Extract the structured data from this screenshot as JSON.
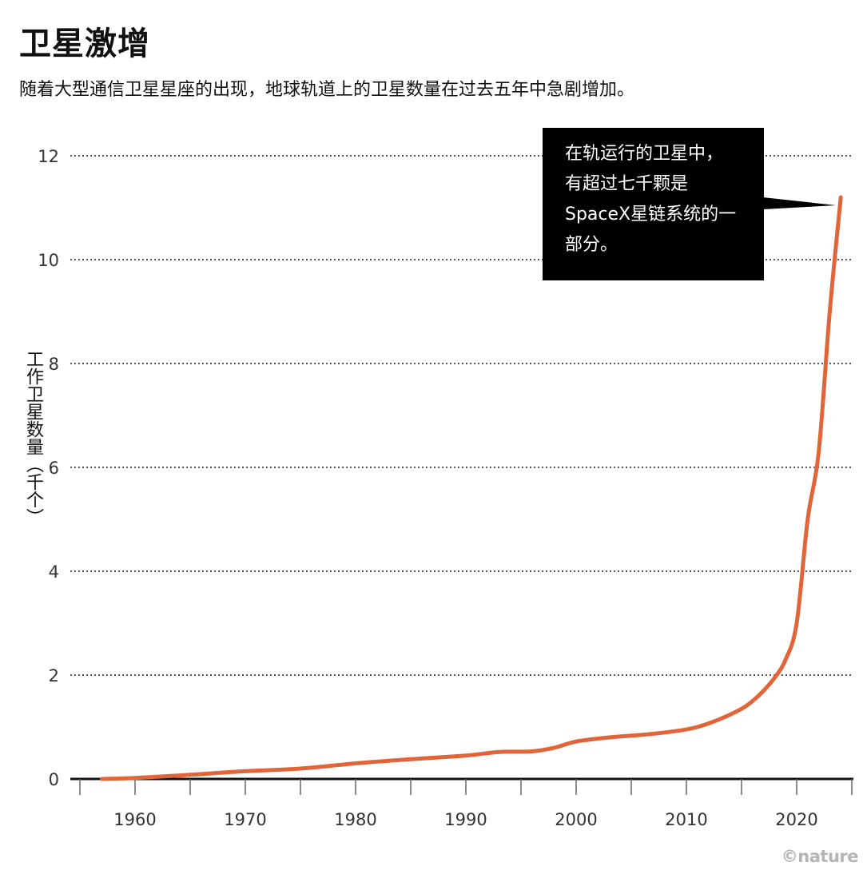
{
  "header": {
    "title": "卫星激增",
    "subtitle": "随着大型通信卫星星座的出现，地球轨道上的卫星数量在过去五年中急剧增加。"
  },
  "annotation": {
    "lines": [
      "在轨运行的卫星中，",
      "有超过七千颗是",
      "SpaceX星链系统的一",
      "部分。"
    ]
  },
  "credit": "©nature",
  "colors": {
    "line": "#e0663a",
    "callout_bg": "#000000",
    "grid": "#555555"
  },
  "chart_data": {
    "type": "line",
    "title": "卫星激增",
    "ylabel": "工作卫星数量（千个）",
    "xlabel": "",
    "xlim": [
      1955,
      2025
    ],
    "ylim": [
      0,
      12
    ],
    "x_ticks": [
      1960,
      1970,
      1980,
      1990,
      2000,
      2010,
      2020
    ],
    "y_ticks": [
      0,
      2,
      4,
      6,
      8,
      10,
      12
    ],
    "grid": "horizontal-dotted",
    "series": [
      {
        "name": "",
        "x": [
          1957,
          1960,
          1965,
          1970,
          1975,
          1980,
          1985,
          1990,
          1993,
          1996,
          1998,
          2000,
          2003,
          2006,
          2009,
          2011,
          2013,
          2015,
          2016,
          2017,
          2018,
          2019,
          2020,
          2021,
          2022,
          2023,
          2024
        ],
        "y": [
          0.0,
          0.02,
          0.08,
          0.15,
          0.2,
          0.3,
          0.38,
          0.45,
          0.52,
          0.53,
          0.6,
          0.72,
          0.8,
          0.85,
          0.92,
          1.0,
          1.15,
          1.35,
          1.5,
          1.7,
          1.95,
          2.3,
          3.0,
          5.0,
          6.3,
          9.0,
          11.2
        ]
      }
    ]
  }
}
